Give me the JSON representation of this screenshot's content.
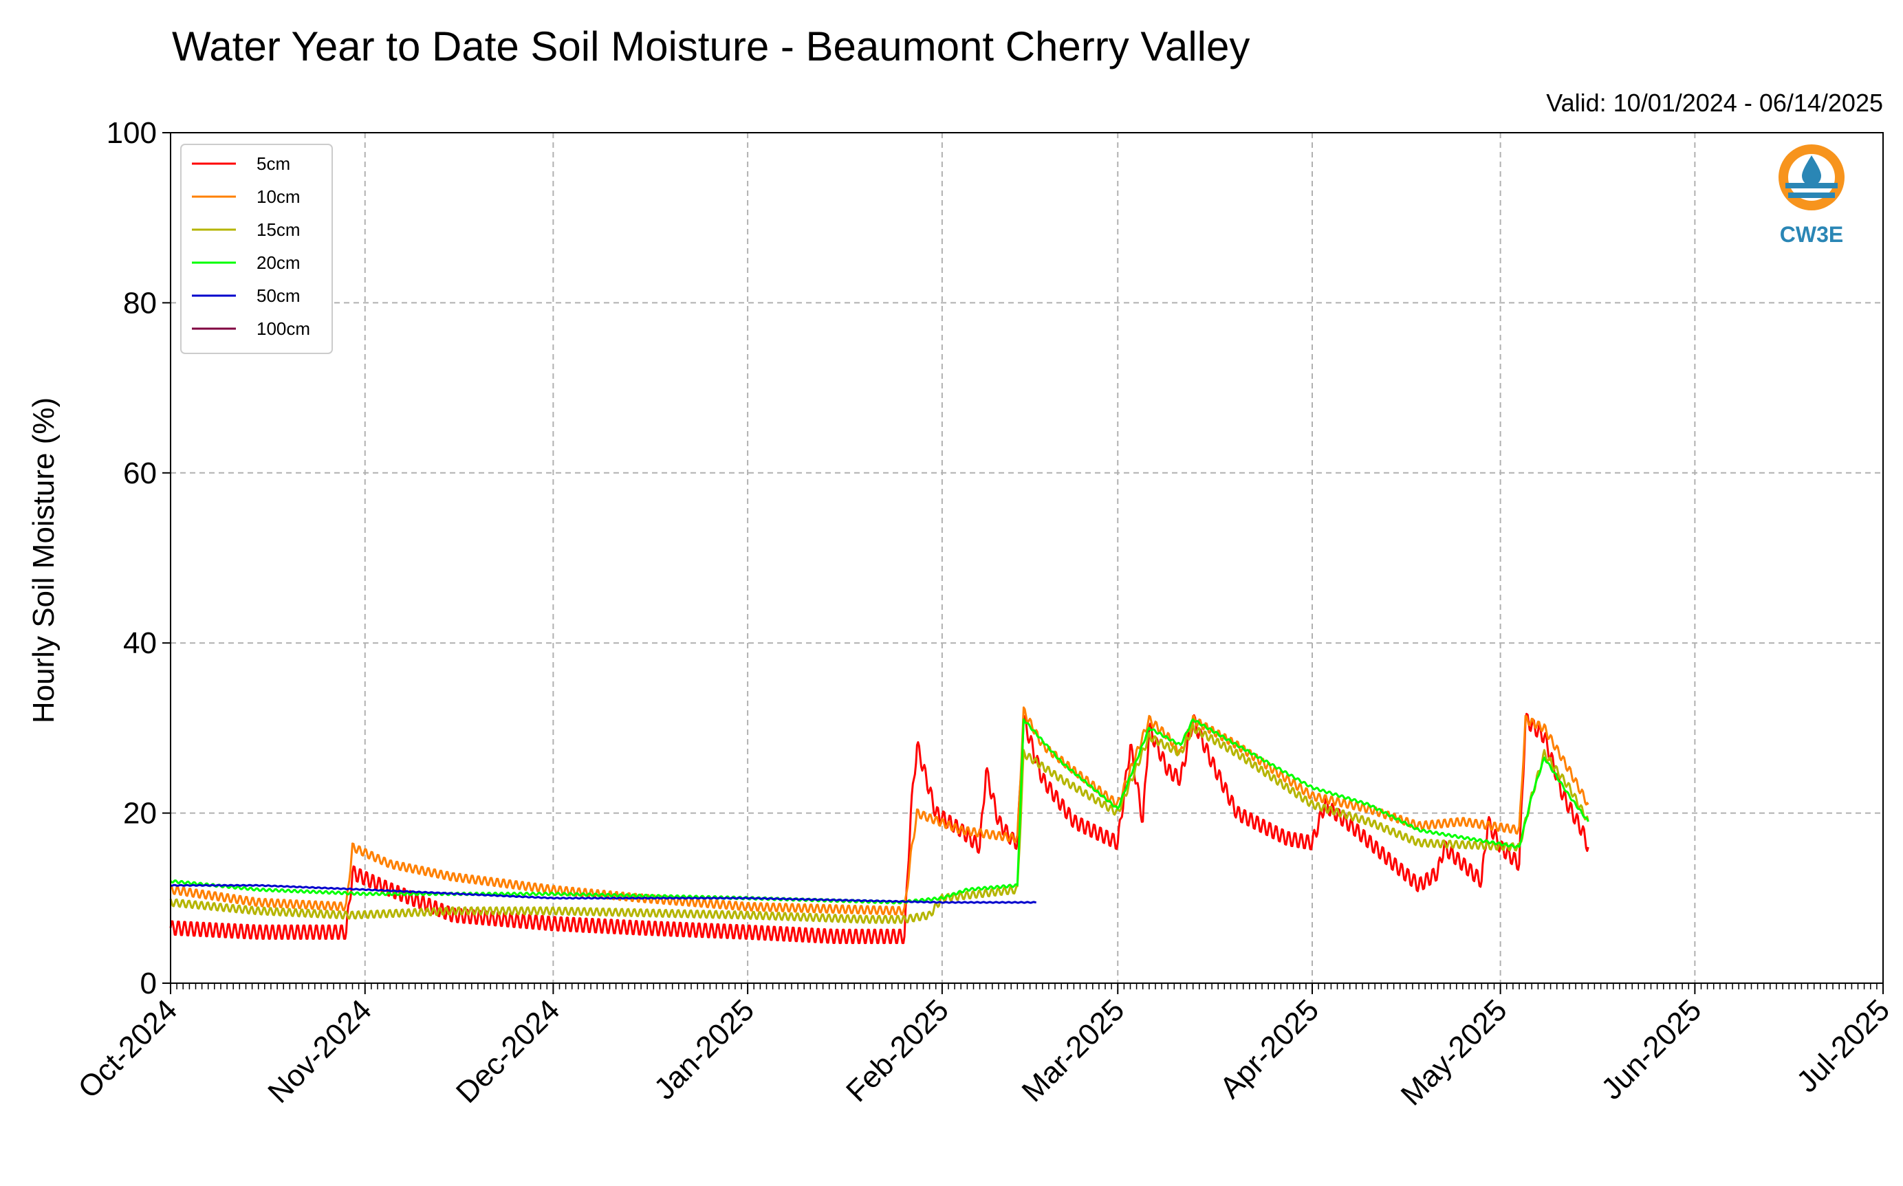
{
  "chart_data": {
    "type": "line",
    "title": "Water Year to Date Soil Moisture - Beaumont Cherry Valley",
    "subtitle": "Valid: 10/01/2024 - 06/14/2025",
    "xlabel": "",
    "ylabel": "Hourly Soil Moisture (%)",
    "xlim": [
      "2024-10-01",
      "2025-07-01"
    ],
    "ylim": [
      0,
      100
    ],
    "yticks": [
      0,
      20,
      40,
      60,
      80,
      100
    ],
    "xticks": [
      {
        "date": "2024-10-01",
        "label": "Oct-2024"
      },
      {
        "date": "2024-11-01",
        "label": "Nov-2024"
      },
      {
        "date": "2024-12-01",
        "label": "Dec-2024"
      },
      {
        "date": "2025-01-01",
        "label": "Jan-2025"
      },
      {
        "date": "2025-02-01",
        "label": "Feb-2025"
      },
      {
        "date": "2025-03-01",
        "label": "Mar-2025"
      },
      {
        "date": "2025-04-01",
        "label": "Apr-2025"
      },
      {
        "date": "2025-05-01",
        "label": "May-2025"
      },
      {
        "date": "2025-06-01",
        "label": "Jun-2025"
      },
      {
        "date": "2025-07-01",
        "label": "Jul-2025"
      }
    ],
    "grid": true,
    "legend_position": "top-left",
    "logo_text": "CW3E",
    "series": [
      {
        "name": "5cm",
        "color": "#ff0000",
        "points": [
          [
            "2024-10-01",
            6.5
          ],
          [
            "2024-10-15",
            6
          ],
          [
            "2024-10-29",
            6
          ],
          [
            "2024-10-30",
            13
          ],
          [
            "2024-11-05",
            11
          ],
          [
            "2024-11-15",
            8
          ],
          [
            "2024-12-01",
            7
          ],
          [
            "2024-12-15",
            6.5
          ],
          [
            "2025-01-01",
            6
          ],
          [
            "2025-01-15",
            5.5
          ],
          [
            "2025-01-26",
            5.5
          ],
          [
            "2025-01-27",
            20
          ],
          [
            "2025-01-28",
            28
          ],
          [
            "2025-01-31",
            20
          ],
          [
            "2025-02-04",
            18
          ],
          [
            "2025-02-07",
            16
          ],
          [
            "2025-02-08",
            25
          ],
          [
            "2025-02-10",
            19
          ],
          [
            "2025-02-12",
            17
          ],
          [
            "2025-02-13",
            16.5
          ],
          [
            "2025-02-14",
            31
          ],
          [
            "2025-02-17",
            24
          ],
          [
            "2025-02-22",
            19
          ],
          [
            "2025-03-01",
            16.5
          ],
          [
            "2025-03-03",
            28
          ],
          [
            "2025-03-05",
            19
          ],
          [
            "2025-03-06",
            30
          ],
          [
            "2025-03-09",
            25
          ],
          [
            "2025-03-11",
            24
          ],
          [
            "2025-03-13",
            31
          ],
          [
            "2025-03-16",
            26
          ],
          [
            "2025-03-20",
            20
          ],
          [
            "2025-03-28",
            17
          ],
          [
            "2025-04-01",
            16.5
          ],
          [
            "2025-04-03",
            21
          ],
          [
            "2025-04-08",
            18
          ],
          [
            "2025-04-14",
            14
          ],
          [
            "2025-04-18",
            11.5
          ],
          [
            "2025-04-21",
            13
          ],
          [
            "2025-04-22",
            16
          ],
          [
            "2025-04-25",
            14
          ],
          [
            "2025-04-28",
            12
          ],
          [
            "2025-04-29",
            19
          ],
          [
            "2025-05-01",
            16
          ],
          [
            "2025-05-04",
            14
          ],
          [
            "2025-05-05",
            31
          ],
          [
            "2025-05-08",
            29
          ],
          [
            "2025-05-11",
            22
          ],
          [
            "2025-05-14",
            18
          ],
          [
            "2025-05-15",
            16
          ]
        ]
      },
      {
        "name": "10cm",
        "color": "#ff8000",
        "points": [
          [
            "2024-10-01",
            11
          ],
          [
            "2024-10-15",
            9.5
          ],
          [
            "2024-10-29",
            9
          ],
          [
            "2024-10-30",
            16
          ],
          [
            "2024-11-05",
            14
          ],
          [
            "2024-11-15",
            12.5
          ],
          [
            "2024-12-01",
            11
          ],
          [
            "2024-12-15",
            10
          ],
          [
            "2025-01-01",
            9
          ],
          [
            "2025-01-26",
            8.5
          ],
          [
            "2025-01-27",
            15
          ],
          [
            "2025-01-28",
            20
          ],
          [
            "2025-02-04",
            18
          ],
          [
            "2025-02-13",
            17
          ],
          [
            "2025-02-14",
            32
          ],
          [
            "2025-02-17",
            28
          ],
          [
            "2025-02-22",
            25
          ],
          [
            "2025-03-01",
            21
          ],
          [
            "2025-03-06",
            31
          ],
          [
            "2025-03-09",
            29
          ],
          [
            "2025-03-11",
            27
          ],
          [
            "2025-03-13",
            31
          ],
          [
            "2025-03-20",
            28
          ],
          [
            "2025-04-01",
            22
          ],
          [
            "2025-04-10",
            20.5
          ],
          [
            "2025-04-18",
            18.5
          ],
          [
            "2025-04-25",
            19
          ],
          [
            "2025-05-04",
            18
          ],
          [
            "2025-05-05",
            31
          ],
          [
            "2025-05-08",
            30
          ],
          [
            "2025-05-12",
            25
          ],
          [
            "2025-05-15",
            21
          ]
        ]
      },
      {
        "name": "15cm",
        "color": "#b5b500",
        "points": [
          [
            "2024-10-01",
            9.5
          ],
          [
            "2024-10-15",
            8.5
          ],
          [
            "2024-10-29",
            8
          ],
          [
            "2024-10-30",
            8
          ],
          [
            "2024-11-15",
            8.5
          ],
          [
            "2024-12-01",
            8.5
          ],
          [
            "2025-01-01",
            8
          ],
          [
            "2025-01-20",
            7.5
          ],
          [
            "2025-01-26",
            7.5
          ],
          [
            "2025-01-30",
            8
          ],
          [
            "2025-02-01",
            10
          ],
          [
            "2025-02-13",
            11
          ],
          [
            "2025-02-14",
            27
          ],
          [
            "2025-02-20",
            24
          ],
          [
            "2025-03-01",
            20
          ],
          [
            "2025-03-06",
            29
          ],
          [
            "2025-03-11",
            27
          ],
          [
            "2025-03-13",
            30
          ],
          [
            "2025-03-20",
            27
          ],
          [
            "2025-04-01",
            21
          ],
          [
            "2025-04-10",
            19
          ],
          [
            "2025-04-18",
            16.5
          ],
          [
            "2025-05-04",
            16
          ],
          [
            "2025-05-06",
            22
          ],
          [
            "2025-05-08",
            27
          ],
          [
            "2025-05-12",
            23
          ],
          [
            "2025-05-15",
            19
          ]
        ]
      },
      {
        "name": "20cm",
        "color": "#00ff00",
        "points": [
          [
            "2024-10-01",
            12
          ],
          [
            "2024-10-15",
            11
          ],
          [
            "2024-11-01",
            10.5
          ],
          [
            "2024-12-01",
            10.5
          ],
          [
            "2025-01-01",
            10
          ],
          [
            "2025-01-25",
            9.5
          ],
          [
            "2025-02-01",
            10
          ],
          [
            "2025-02-05",
            11
          ],
          [
            "2025-02-13",
            11.5
          ],
          [
            "2025-02-14",
            31
          ],
          [
            "2025-02-20",
            26
          ],
          [
            "2025-03-01",
            20.5
          ],
          [
            "2025-03-06",
            30
          ],
          [
            "2025-03-11",
            28
          ],
          [
            "2025-03-13",
            31
          ],
          [
            "2025-03-20",
            28
          ],
          [
            "2025-04-01",
            23
          ],
          [
            "2025-04-10",
            21
          ],
          [
            "2025-04-18",
            18
          ],
          [
            "2025-05-04",
            16
          ],
          [
            "2025-05-06",
            22
          ],
          [
            "2025-05-08",
            26.5
          ],
          [
            "2025-05-12",
            22
          ],
          [
            "2025-05-15",
            19
          ]
        ]
      },
      {
        "name": "50cm",
        "color": "#0000cc",
        "points": [
          [
            "2024-10-01",
            11.5
          ],
          [
            "2024-10-15",
            11.5
          ],
          [
            "2024-11-01",
            11
          ],
          [
            "2024-12-01",
            10
          ],
          [
            "2025-01-01",
            10
          ],
          [
            "2025-02-01",
            9.5
          ],
          [
            "2025-02-16",
            9.5
          ]
        ]
      },
      {
        "name": "100cm",
        "color": "#800040",
        "points": []
      }
    ]
  }
}
